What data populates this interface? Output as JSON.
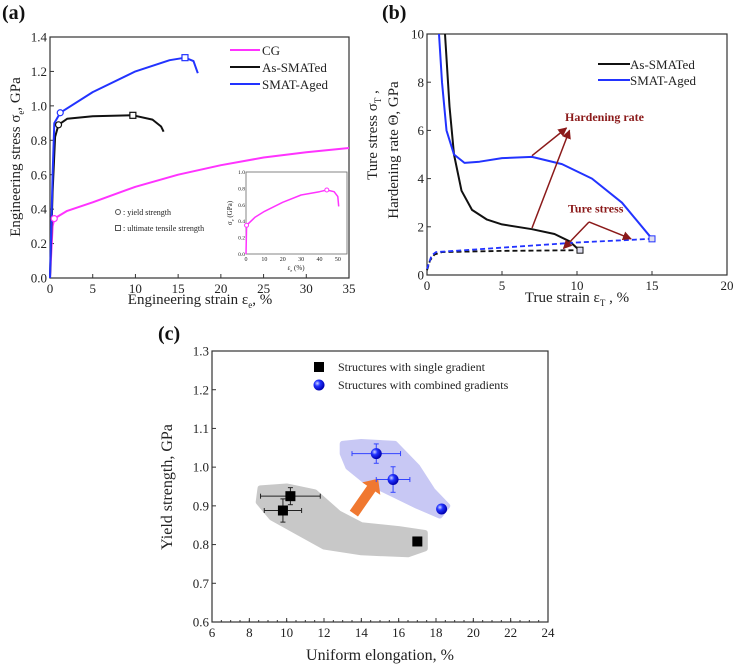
{
  "chart_data": [
    {
      "panel_label": "(a)",
      "type": "line",
      "xlabel": "Engineering strain ε",
      "xlabel_sub": "e",
      "xlabel_unit": ", %",
      "ylabel": "Engineering stress σ",
      "ylabel_sub": "e",
      "ylabel_unit": ", GPa",
      "xlim": [
        0,
        35
      ],
      "ylim": [
        0,
        1.4
      ],
      "xticks": [
        0,
        5,
        10,
        15,
        20,
        25,
        30,
        35
      ],
      "yticks": [
        "0.0",
        "0.2",
        "0.4",
        "0.6",
        "0.8",
        "1.0",
        "1.2",
        "1.4"
      ],
      "legend_position": "top-right",
      "series": [
        {
          "name": "CG",
          "color": "#ff33ff",
          "points": [
            [
              0,
              0
            ],
            [
              0.3,
              0.3
            ],
            [
              0.5,
              0.345
            ],
            [
              2,
              0.39
            ],
            [
              5,
              0.44
            ],
            [
              10,
              0.53
            ],
            [
              15,
              0.6
            ],
            [
              20,
              0.655
            ],
            [
              25,
              0.7
            ],
            [
              30,
              0.73
            ],
            [
              35,
              0.755
            ]
          ]
        },
        {
          "name": "As-SMATed",
          "color": "#111111",
          "points": [
            [
              0,
              0
            ],
            [
              0.3,
              0.5
            ],
            [
              0.6,
              0.82
            ],
            [
              1,
              0.89
            ],
            [
              2,
              0.925
            ],
            [
              5,
              0.94
            ],
            [
              9.7,
              0.945
            ],
            [
              12,
              0.92
            ],
            [
              13,
              0.88
            ],
            [
              13.3,
              0.85
            ]
          ]
        },
        {
          "name": "SMAT-Aged",
          "color": "#2233ff",
          "points": [
            [
              0,
              0
            ],
            [
              0.3,
              0.6
            ],
            [
              0.5,
              0.9
            ],
            [
              1.2,
              0.96
            ],
            [
              5,
              1.08
            ],
            [
              10,
              1.2
            ],
            [
              14,
              1.265
            ],
            [
              15.8,
              1.28
            ],
            [
              16.8,
              1.26
            ],
            [
              17.3,
              1.19
            ]
          ]
        }
      ],
      "yield_markers": [
        {
          "series": "CG",
          "x": 0.5,
          "y": 0.345
        },
        {
          "series": "As-SMATed",
          "x": 1.0,
          "y": 0.89
        },
        {
          "series": "SMAT-Aged",
          "x": 1.2,
          "y": 0.96
        }
      ],
      "uts_markers": [
        {
          "series": "As-SMATed",
          "x": 9.7,
          "y": 0.945
        },
        {
          "series": "SMAT-Aged",
          "x": 15.8,
          "y": 1.28
        }
      ],
      "marker_legend": [
        ": yield strength",
        ": ultimate tensile strength"
      ],
      "inset": {
        "xlabel": "ε",
        "xlabel_sub": "e",
        "xlabel_unit": " (%)",
        "ylabel": "σ",
        "ylabel_sub": "e",
        "ylabel_unit": " (GPa)",
        "xlim": [
          0,
          55
        ],
        "ylim": [
          0,
          1.0
        ],
        "xticks": [
          0,
          10,
          20,
          30,
          40,
          50
        ],
        "yticks": [
          "0.0",
          "0.2",
          "0.4",
          "0.6",
          "0.8",
          "1.0"
        ],
        "series": [
          {
            "name": "CG",
            "color": "#ff33ff",
            "points": [
              [
                0,
                0
              ],
              [
                0.3,
                0.35
              ],
              [
                5,
                0.45
              ],
              [
                10,
                0.52
              ],
              [
                20,
                0.63
              ],
              [
                30,
                0.72
              ],
              [
                40,
                0.76
              ],
              [
                44,
                0.78
              ],
              [
                48,
                0.76
              ],
              [
                50,
                0.7
              ],
              [
                50.5,
                0.58
              ]
            ]
          }
        ],
        "markers": [
          {
            "x": 0.3,
            "y": 0.35
          },
          {
            "x": 44,
            "y": 0.78
          }
        ]
      }
    },
    {
      "panel_label": "(b)",
      "type": "line",
      "xlabel": "True strain ε",
      "xlabel_sub": "T",
      "xlabel_unit": " ,  %",
      "ylabel_line1": "Ture stress σ",
      "ylabel_line1_sub": "T",
      "ylabel_line1_unit": " ,",
      "ylabel_line2": "Hardening rate Θ,  GPa",
      "xlim": [
        0,
        20
      ],
      "ylim": [
        0,
        10
      ],
      "xticks": [
        0,
        5,
        10,
        15,
        20
      ],
      "yticks": [
        0,
        2,
        4,
        6,
        8,
        10
      ],
      "legend_position": "top-right",
      "series": [
        {
          "name": "As-SMATed",
          "color": "#111111",
          "style": "solid",
          "points": [
            [
              1.2,
              10
            ],
            [
              1.5,
              7
            ],
            [
              1.8,
              5
            ],
            [
              2.3,
              3.5
            ],
            [
              3,
              2.7
            ],
            [
              4,
              2.3
            ],
            [
              5,
              2.1
            ],
            [
              7,
              1.9
            ],
            [
              8.5,
              1.7
            ],
            [
              9.5,
              1.4
            ],
            [
              10.2,
              1.0
            ]
          ]
        },
        {
          "name": "SMAT-Aged",
          "color": "#2233ff",
          "style": "solid",
          "points": [
            [
              0.8,
              10
            ],
            [
              1,
              8
            ],
            [
              1.3,
              6
            ],
            [
              1.8,
              5
            ],
            [
              2.5,
              4.65
            ],
            [
              3.5,
              4.7
            ],
            [
              5,
              4.85
            ],
            [
              7,
              4.9
            ],
            [
              9,
              4.6
            ],
            [
              11,
              4.0
            ],
            [
              13,
              3.0
            ],
            [
              15,
              1.5
            ]
          ]
        },
        {
          "color": "#111111",
          "style": "dashed",
          "points": [
            [
              0,
              0.2
            ],
            [
              0.2,
              0.6
            ],
            [
              0.5,
              0.85
            ],
            [
              1,
              0.95
            ],
            [
              5,
              1.0
            ],
            [
              10.2,
              1.03
            ]
          ]
        },
        {
          "color": "#2233ff",
          "style": "dashed",
          "points": [
            [
              0,
              0.25
            ],
            [
              0.3,
              0.8
            ],
            [
              0.6,
              0.95
            ],
            [
              3,
              1.05
            ],
            [
              10,
              1.35
            ],
            [
              15,
              1.5
            ]
          ]
        }
      ],
      "end_markers": [
        {
          "x": 10.2,
          "y": 1.03,
          "color": "#111111"
        },
        {
          "x": 15,
          "y": 1.5,
          "color": "#2233ff"
        }
      ],
      "annotations": [
        {
          "text": "Hardening rate",
          "x": 9.2,
          "y": 6.4,
          "color": "#8b1a1a",
          "arrows": [
            [
              [
                7,
                4.95
              ],
              [
                9.3,
                6.1
              ]
            ],
            [
              [
                7,
                1.95
              ],
              [
                9.5,
                6.0
              ]
            ]
          ]
        },
        {
          "text": "Ture stress",
          "x": 9.4,
          "y": 2.6,
          "color": "#8b1a1a",
          "arrows": [
            [
              [
                10.8,
                2.2
              ],
              [
                9.1,
                1.1
              ]
            ],
            [
              [
                10.8,
                2.2
              ],
              [
                13.6,
                1.5
              ]
            ]
          ]
        }
      ]
    },
    {
      "panel_label": "(c)",
      "type": "scatter",
      "xlabel": "Uniform elongation, %",
      "ylabel": "Yield strength, GPa",
      "xlim": [
        6,
        24
      ],
      "ylim": [
        0.6,
        1.3
      ],
      "xticks": [
        6,
        8,
        10,
        12,
        14,
        16,
        18,
        20,
        22,
        24
      ],
      "yticks": [
        "0.6",
        "0.7",
        "0.8",
        "0.9",
        "1.0",
        "1.1",
        "1.2",
        "1.3"
      ],
      "legend_position": "top-right",
      "series": [
        {
          "name": "Structures with single gradient",
          "marker": "square",
          "color": "#000000",
          "points": [
            {
              "x": 9.8,
              "y": 0.888,
              "xerr": 1.0,
              "yerr": 0.03
            },
            {
              "x": 10.2,
              "y": 0.925,
              "xerr": 1.6,
              "yerr": 0.022
            },
            {
              "x": 17.0,
              "y": 0.808
            }
          ]
        },
        {
          "name": "Structures with combined gradients",
          "marker": "sphere",
          "color": "#1a1aff",
          "points": [
            {
              "x": 14.8,
              "y": 1.035,
              "xerr": 1.3,
              "yerr": 0.025
            },
            {
              "x": 15.7,
              "y": 0.968,
              "xerr": 0.9,
              "yerr": 0.033
            },
            {
              "x": 18.3,
              "y": 0.892
            }
          ]
        }
      ],
      "highlight_regions": [
        {
          "color": "#c8c8c8",
          "points": [
            [
              8.6,
              0.945
            ],
            [
              10,
              0.95
            ],
            [
              11.5,
              0.935
            ],
            [
              12.8,
              0.88
            ],
            [
              14,
              0.85
            ],
            [
              16,
              0.84
            ],
            [
              17.4,
              0.83
            ],
            [
              17.4,
              0.79
            ],
            [
              16.5,
              0.775
            ],
            [
              14,
              0.78
            ],
            [
              12,
              0.795
            ],
            [
              10.5,
              0.835
            ],
            [
              9.2,
              0.87
            ],
            [
              8.5,
              0.91
            ]
          ]
        },
        {
          "color": "#c8c8f4",
          "points": [
            [
              13.0,
              1.06
            ],
            [
              14,
              1.065
            ],
            [
              15.8,
              1.06
            ],
            [
              17,
              1.0
            ],
            [
              17.8,
              0.94
            ],
            [
              18.6,
              0.9
            ],
            [
              18.2,
              0.875
            ],
            [
              17,
              0.9
            ],
            [
              15.5,
              0.935
            ],
            [
              14.2,
              0.965
            ],
            [
              13.3,
              1.0
            ],
            [
              13.0,
              1.035
            ]
          ]
        }
      ],
      "trend_arrow": {
        "from": [
          13.6,
          0.88
        ],
        "to": [
          14.9,
          0.97
        ],
        "color": "#f07830"
      }
    }
  ]
}
